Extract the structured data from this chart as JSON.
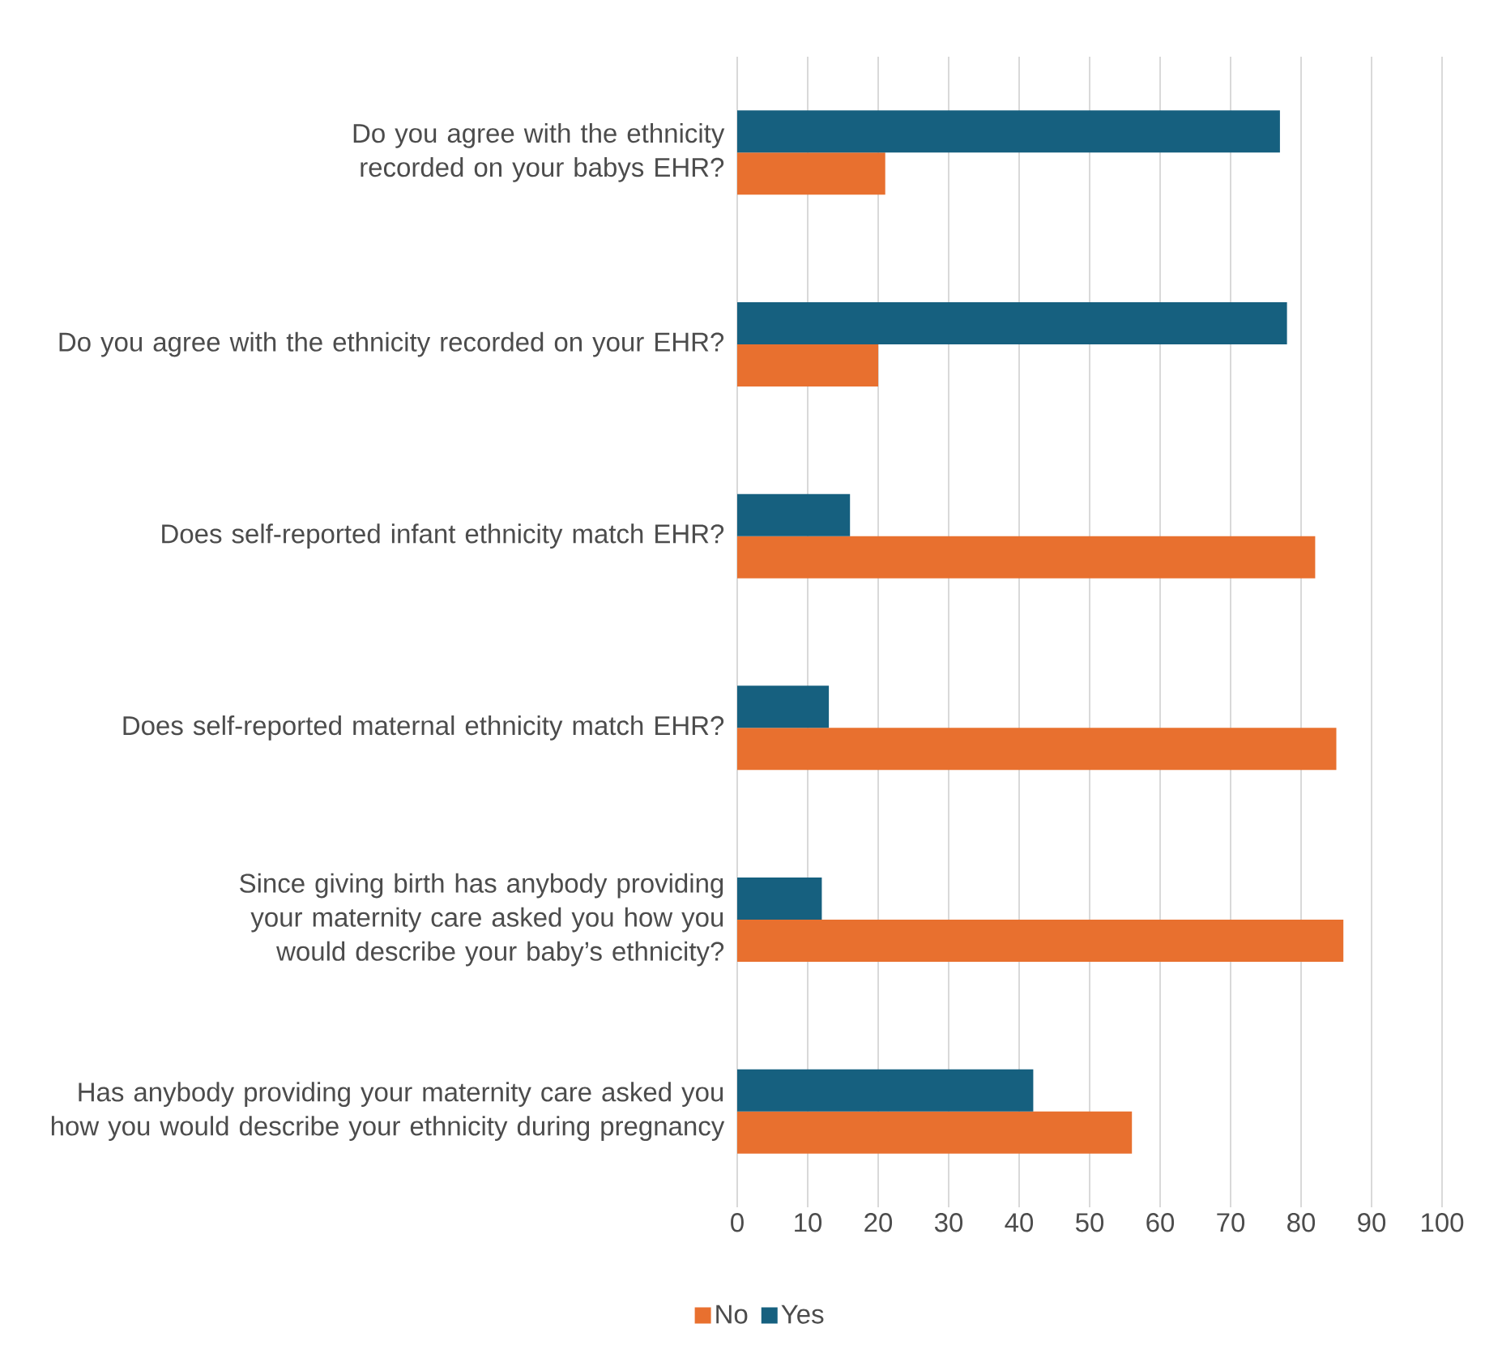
{
  "chart_data": {
    "type": "bar",
    "orientation": "horizontal",
    "categories": [
      "Do you agree with the ethnicity recorded on your babys EHR?",
      "Do you agree with the ethnicity recorded on your EHR?",
      "Does self-reported infant ethnicity match EHR?",
      "Does self-reported maternal ethnicity match EHR?",
      "Since giving birth has anybody providing your maternity care asked you how you would describe your baby’s ethnicity?",
      "Has anybody providing your maternity care asked you how you would describe your ethnicity during pregnancy"
    ],
    "series": [
      {
        "name": "No",
        "color": "#e8702f",
        "values": [
          21,
          20,
          82,
          85,
          86,
          56
        ]
      },
      {
        "name": "Yes",
        "color": "#16607f",
        "values": [
          77,
          78,
          16,
          13,
          12,
          42
        ]
      }
    ],
    "xlim": [
      0,
      100
    ],
    "xticks": [
      0,
      10,
      20,
      30,
      40,
      50,
      60,
      70,
      80,
      90,
      100
    ],
    "grid": "x",
    "legend": "bottom"
  }
}
